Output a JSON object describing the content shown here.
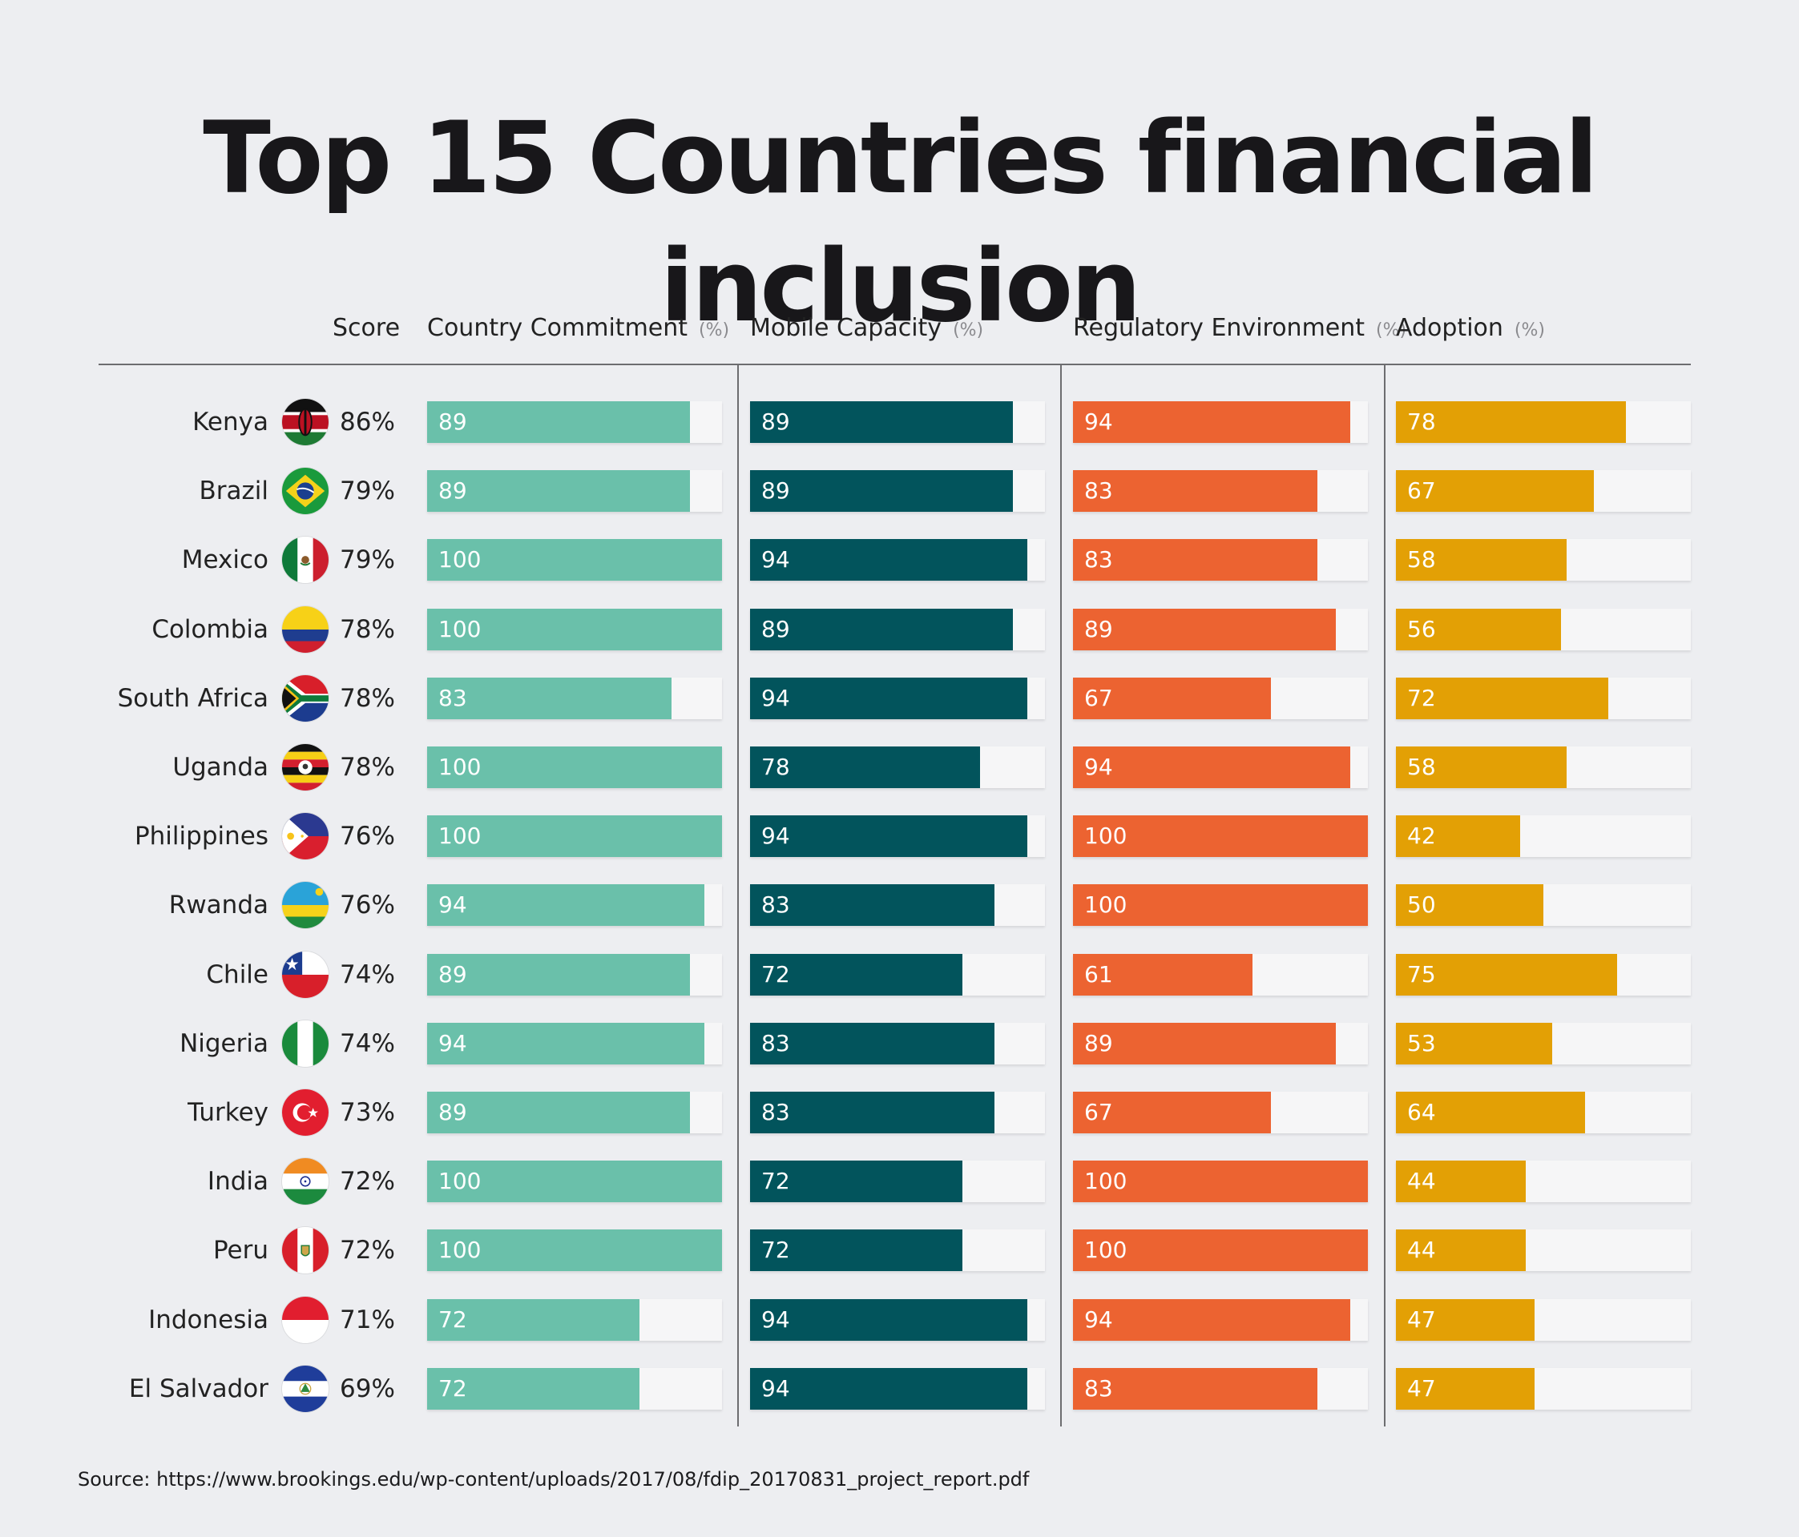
{
  "chart_data": {
    "type": "bar",
    "title": "Top 15 Countries financial inclusion",
    "score_header": "Score",
    "xlim": [
      0,
      100
    ],
    "colors": {
      "country_commitment": "#6ac0aa",
      "mobile_capacity": "#02545c",
      "regulatory_environment": "#ec6331",
      "adoption": "#e3a005"
    },
    "series": [
      {
        "key": "country_commitment",
        "name": "Country Commitment",
        "unit": "(%)"
      },
      {
        "key": "mobile_capacity",
        "name": "Mobile Capacity",
        "unit": "(%)"
      },
      {
        "key": "regulatory_environment",
        "name": "Regulatory Environment",
        "unit": "(%)"
      },
      {
        "key": "adoption",
        "name": "Adoption",
        "unit": "(%)"
      }
    ],
    "rows": [
      {
        "country": "Kenya",
        "flag": "kenya-flag-icon",
        "score": "86%",
        "values": [
          89,
          89,
          94,
          78
        ]
      },
      {
        "country": "Brazil",
        "flag": "brazil-flag-icon",
        "score": "79%",
        "values": [
          89,
          89,
          83,
          67
        ]
      },
      {
        "country": "Mexico",
        "flag": "mexico-flag-icon",
        "score": "79%",
        "values": [
          100,
          94,
          83,
          58
        ]
      },
      {
        "country": "Colombia",
        "flag": "colombia-flag-icon",
        "score": "78%",
        "values": [
          100,
          89,
          89,
          56
        ]
      },
      {
        "country": "South Africa",
        "flag": "south-africa-flag-icon",
        "score": "78%",
        "values": [
          83,
          94,
          67,
          72
        ]
      },
      {
        "country": "Uganda",
        "flag": "uganda-flag-icon",
        "score": "78%",
        "values": [
          100,
          78,
          94,
          58
        ]
      },
      {
        "country": "Philippines",
        "flag": "philippines-flag-icon",
        "score": "76%",
        "values": [
          100,
          94,
          100,
          42
        ]
      },
      {
        "country": "Rwanda",
        "flag": "rwanda-flag-icon",
        "score": "76%",
        "values": [
          94,
          83,
          100,
          50
        ]
      },
      {
        "country": "Chile",
        "flag": "chile-flag-icon",
        "score": "74%",
        "values": [
          89,
          72,
          61,
          75
        ]
      },
      {
        "country": "Nigeria",
        "flag": "nigeria-flag-icon",
        "score": "74%",
        "values": [
          94,
          83,
          89,
          53
        ]
      },
      {
        "country": "Turkey",
        "flag": "turkey-flag-icon",
        "score": "73%",
        "values": [
          89,
          83,
          67,
          64
        ]
      },
      {
        "country": "India",
        "flag": "india-flag-icon",
        "score": "72%",
        "values": [
          100,
          72,
          100,
          44
        ]
      },
      {
        "country": "Peru",
        "flag": "peru-flag-icon",
        "score": "72%",
        "values": [
          100,
          72,
          100,
          44
        ]
      },
      {
        "country": "Indonesia",
        "flag": "indonesia-flag-icon",
        "score": "71%",
        "values": [
          72,
          94,
          94,
          47
        ]
      },
      {
        "country": "El Salvador",
        "flag": "el-salvador-flag-icon",
        "score": "69%",
        "values": [
          72,
          94,
          83,
          47
        ]
      }
    ],
    "source": "Source: https://www.brookings.edu/wp-content/uploads/2017/08/fdip_20170831_project_report.pdf"
  }
}
